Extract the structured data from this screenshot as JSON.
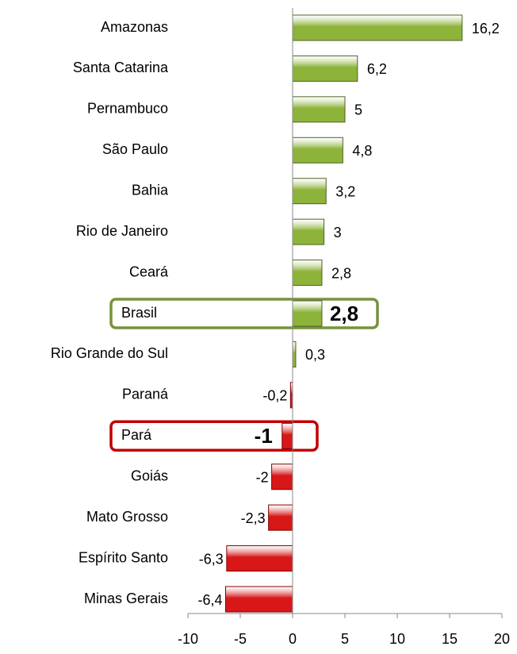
{
  "chart_data": {
    "type": "bar",
    "orientation": "horizontal",
    "categories": [
      "Amazonas",
      "Santa Catarina",
      "Pernambuco",
      "São Paulo",
      "Bahia",
      "Rio de Janeiro",
      "Ceará",
      "Brasil",
      "Rio Grande do Sul",
      "Paraná",
      "Pará",
      "Goiás",
      "Mato Grosso",
      "Espírito Santo",
      "Minas Gerais"
    ],
    "values": [
      16.2,
      6.2,
      5,
      4.8,
      3.2,
      3,
      2.8,
      2.8,
      0.3,
      -0.2,
      -1,
      -2,
      -2.3,
      -6.3,
      -6.4
    ],
    "value_labels": [
      "16,2",
      "6,2",
      "5",
      "4,8",
      "3,2",
      "3",
      "2,8",
      "2,8",
      "0,3",
      "-0,2",
      "-1",
      "-2",
      "-2,3",
      "-6,3",
      "-6,4"
    ],
    "positive_color": "#8db33a",
    "negative_color": "#d81818",
    "xlim": [
      -10,
      20
    ],
    "xticks": [
      -10,
      -5,
      0,
      5,
      10,
      15,
      20
    ]
  }
}
